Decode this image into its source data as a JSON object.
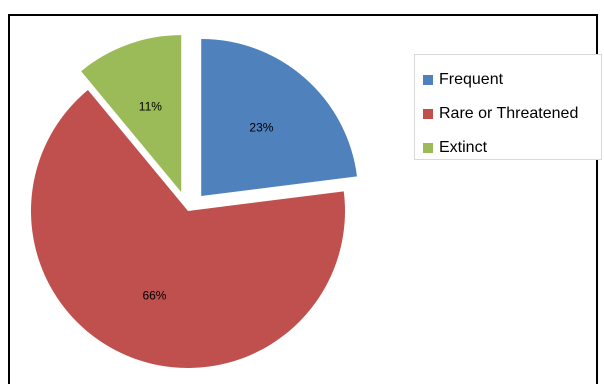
{
  "chart_data": {
    "type": "pie",
    "title": "",
    "start_angle_deg": 0,
    "direction": "clockwise",
    "legend_position": "right",
    "slices": [
      {
        "label": "Frequent",
        "value": 23,
        "display": "23%",
        "color": "#4F81BD",
        "exploded": true
      },
      {
        "label": "Rare or Threatened",
        "value": 66,
        "display": "66%",
        "color": "#C0504D",
        "exploded": false
      },
      {
        "label": "Extinct",
        "value": 11,
        "display": "11%",
        "color": "#9BBB59",
        "exploded": true
      }
    ]
  }
}
